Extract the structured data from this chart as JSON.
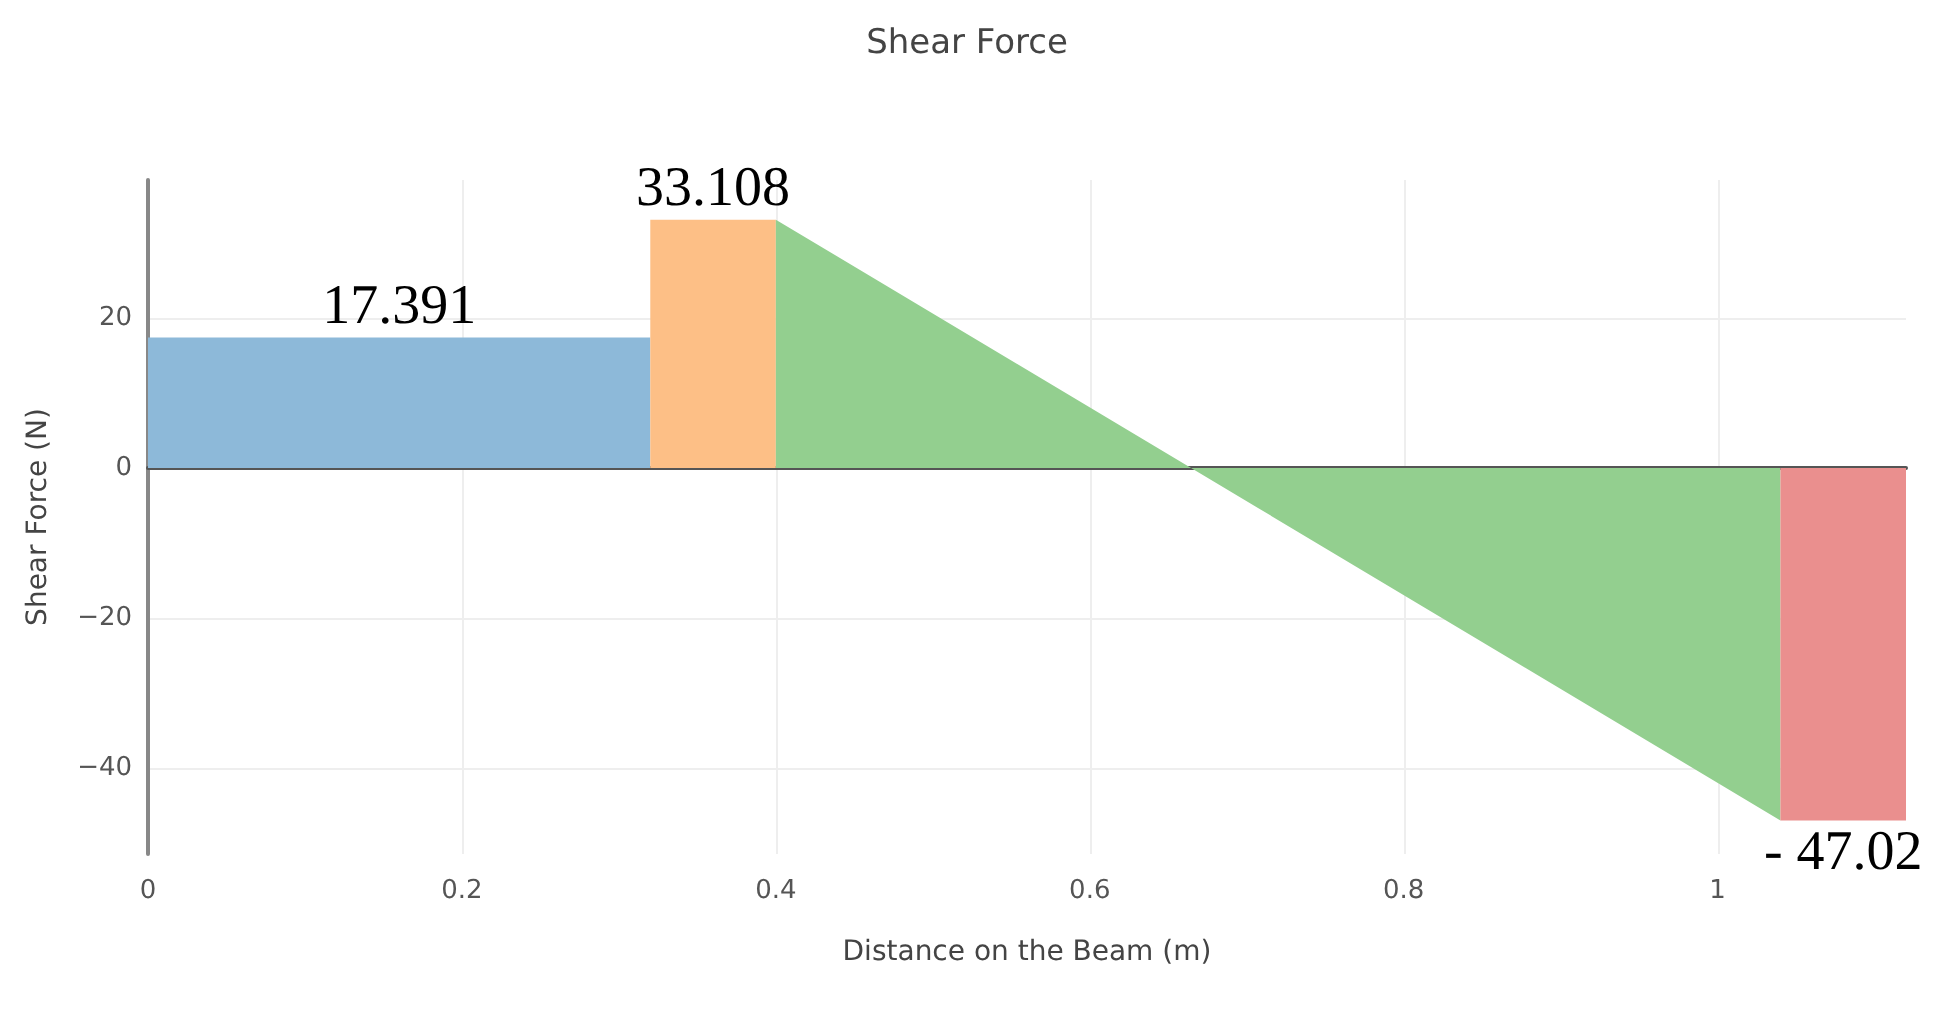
{
  "chart_data": {
    "type": "area",
    "title": "Shear Force",
    "xlabel": "Distance on the Beam (m)",
    "ylabel": "Shear Force (N)",
    "xlim": [
      0,
      1.12
    ],
    "xticks": [
      0,
      0.2,
      0.4,
      0.6,
      0.8,
      1
    ],
    "ylim": [
      -51.5,
      38.4
    ],
    "yticks": [
      {
        "value": -40,
        "label": "−40"
      },
      {
        "value": -20,
        "label": "−20"
      },
      0,
      20
    ],
    "grid": true,
    "marker": "none",
    "series": [
      {
        "color": "#8db9d9",
        "x": [
          0,
          0.32
        ],
        "values": [
          17.391,
          17.391
        ]
      },
      {
        "color": "#fdbf86",
        "x": [
          0.32,
          0.4
        ],
        "values": [
          33.108,
          33.108
        ]
      },
      {
        "color": "#93cf8f",
        "x": [
          0.4,
          1.04
        ],
        "values": [
          33.108,
          -47.02
        ]
      },
      {
        "color": "#ea8f8e",
        "x": [
          1.04,
          1.12
        ],
        "values": [
          -47.02,
          -47.02
        ]
      }
    ],
    "annotations": [
      {
        "text": "17.391",
        "x": 0.16,
        "y": 17.391
      },
      {
        "text": "33.108",
        "x": 0.36,
        "y": 33.108
      },
      {
        "text": "- 47.02",
        "x": 1.08,
        "y": -47.02
      }
    ]
  }
}
